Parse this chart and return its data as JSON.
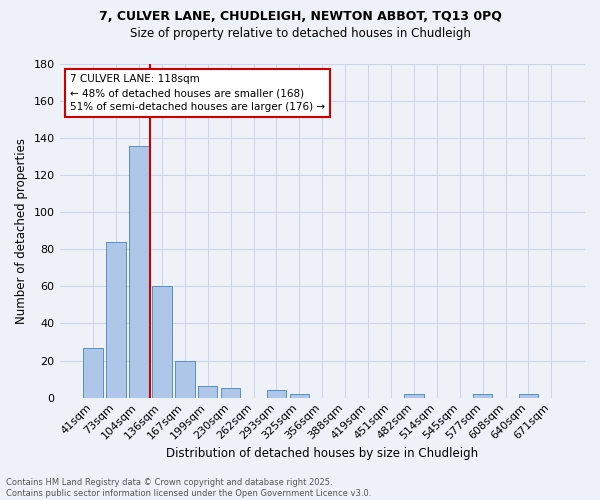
{
  "title_line1": "7, CULVER LANE, CHUDLEIGH, NEWTON ABBOT, TQ13 0PQ",
  "title_line2": "Size of property relative to detached houses in Chudleigh",
  "xlabel": "Distribution of detached houses by size in Chudleigh",
  "ylabel": "Number of detached properties",
  "categories": [
    "41sqm",
    "73sqm",
    "104sqm",
    "136sqm",
    "167sqm",
    "199sqm",
    "230sqm",
    "262sqm",
    "293sqm",
    "325sqm",
    "356sqm",
    "388sqm",
    "419sqm",
    "451sqm",
    "482sqm",
    "514sqm",
    "545sqm",
    "577sqm",
    "608sqm",
    "640sqm",
    "671sqm"
  ],
  "values": [
    27,
    84,
    136,
    60,
    20,
    6,
    5,
    0,
    4,
    2,
    0,
    0,
    0,
    0,
    2,
    0,
    0,
    2,
    0,
    2,
    0
  ],
  "bar_color": "#aec6e8",
  "bar_edge_color": "#5a8fc0",
  "vline_x": 2.5,
  "vline_color": "#cc0000",
  "annotation_text": "7 CULVER LANE: 118sqm\n← 48% of detached houses are smaller (168)\n51% of semi-detached houses are larger (176) →",
  "annotation_box_color": "#ffffff",
  "annotation_box_edge": "#cc0000",
  "ylim": [
    0,
    180
  ],
  "yticks": [
    0,
    20,
    40,
    60,
    80,
    100,
    120,
    140,
    160,
    180
  ],
  "grid_color": "#ccd6e8",
  "background_color": "#eef2f8",
  "footer_text": "Contains HM Land Registry data © Crown copyright and database right 2025.\nContains public sector information licensed under the Open Government Licence v3.0."
}
